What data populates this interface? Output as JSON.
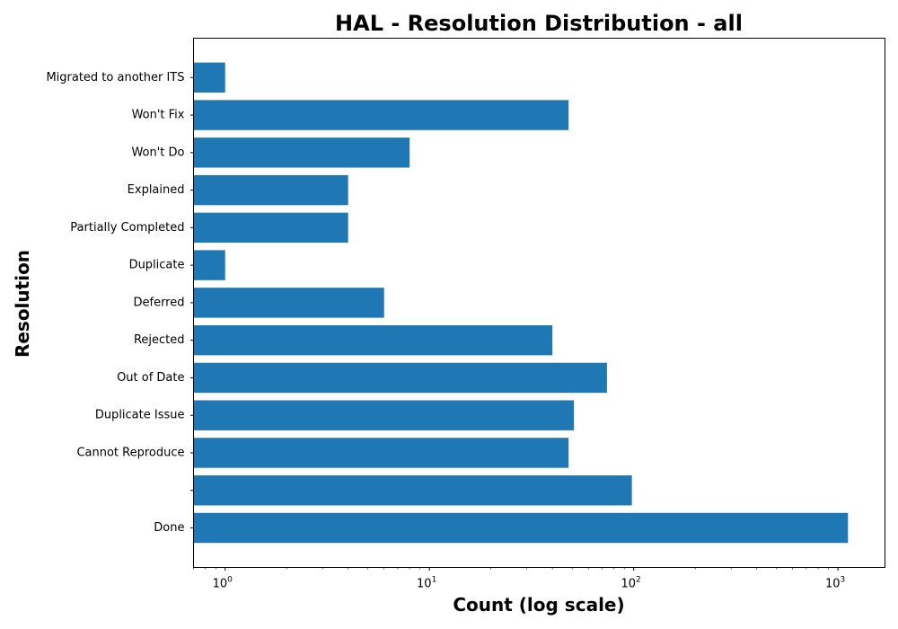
{
  "chart_data": {
    "type": "bar",
    "orientation": "horizontal",
    "title": "HAL - Resolution Distribution - all",
    "xlabel": "Count (log scale)",
    "ylabel": "Resolution",
    "xscale": "log",
    "xlim": [
      0.7,
      1700
    ],
    "x_ticks": [
      {
        "value": 1,
        "label": "10",
        "exponent": "0"
      },
      {
        "value": 10,
        "label": "10",
        "exponent": "1"
      },
      {
        "value": 100,
        "label": "10",
        "exponent": "2"
      },
      {
        "value": 1000,
        "label": "10",
        "exponent": "3"
      }
    ],
    "categories": [
      "Done",
      "",
      "Cannot Reproduce",
      "Duplicate Issue",
      "Out of Date",
      "Rejected",
      "Deferred",
      "Duplicate",
      "Partially Completed",
      "Explained",
      "Won't Do",
      "Won't Fix",
      "Migrated to another ITS"
    ],
    "values": [
      1120,
      98,
      48,
      51,
      74,
      40,
      6,
      1,
      4,
      4,
      8,
      48,
      1
    ],
    "bar_color": "#1f77b4",
    "grid": false,
    "legend": "none"
  }
}
